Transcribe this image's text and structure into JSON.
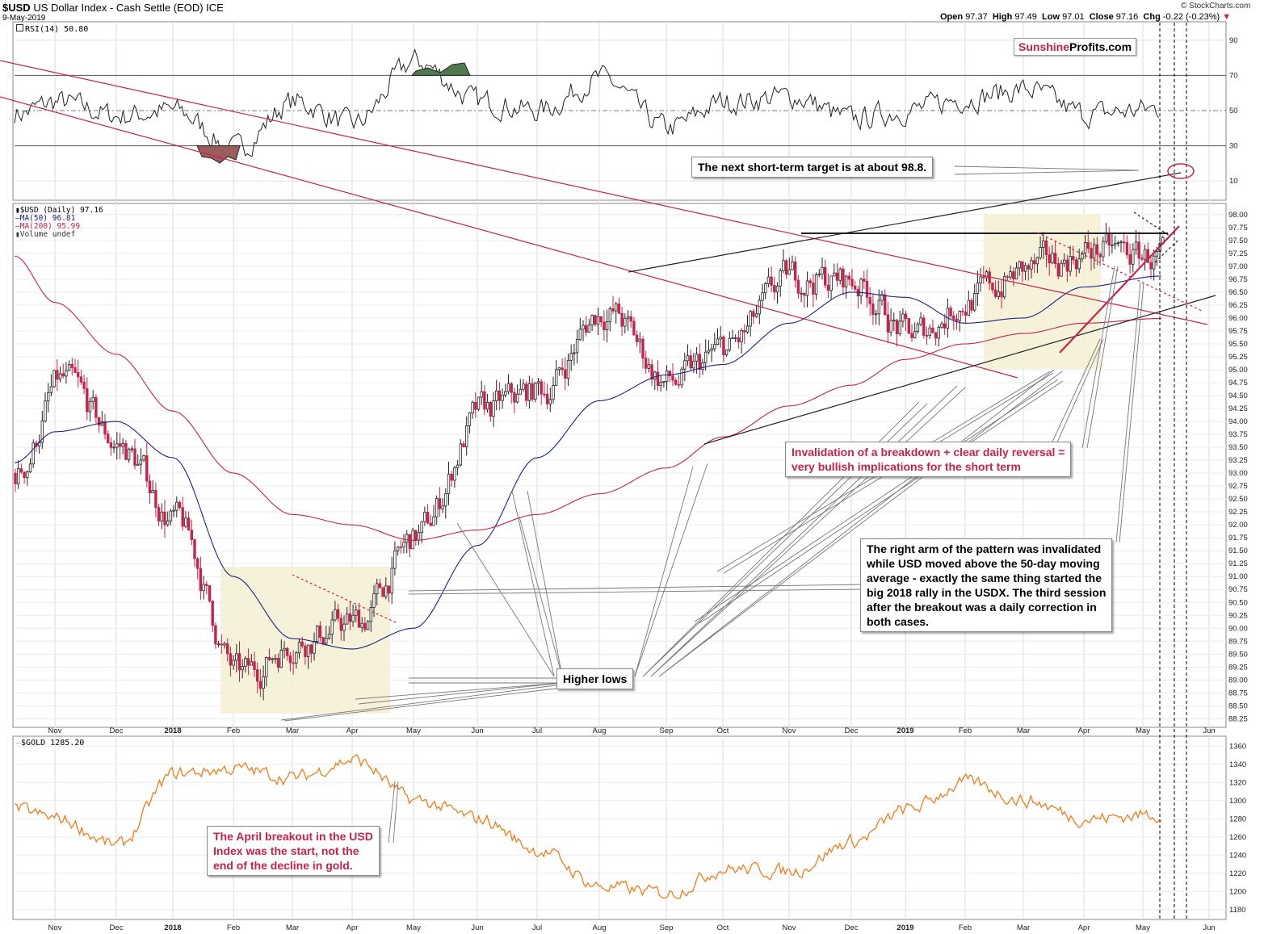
{
  "header": {
    "symbol": "$USD",
    "name": "US Dollar Index - Cash Settle (EOD)",
    "exchange": "ICE",
    "date": "9-May-2019",
    "copyright": "© StockCharts.com",
    "open_label": "Open",
    "open": "97.37",
    "high_label": "High",
    "high": "97.49",
    "low_label": "Low",
    "low": "97.01",
    "close_label": "Close",
    "close": "97.16",
    "chg_label": "Chg",
    "chg": "-0.22 (-0.23%)"
  },
  "logo": {
    "part1": "Sunshine",
    "part2": "Profits.com"
  },
  "rsi_panel": {
    "label": "RSI(14) 50.80",
    "ticks": [
      "90",
      "70",
      "50",
      "30",
      "10"
    ]
  },
  "price_panel": {
    "legend": [
      "$USD (Daily) 97.16",
      "MA(50) 96.81",
      "MA(200) 95.99",
      "Volume undef"
    ],
    "ticks": [
      "98.00",
      "97.75",
      "97.50",
      "97.25",
      "97.00",
      "96.75",
      "96.50",
      "96.25",
      "96.00",
      "95.75",
      "95.50",
      "95.25",
      "95.00",
      "94.75",
      "94.50",
      "94.25",
      "94.00",
      "93.75",
      "93.50",
      "93.25",
      "93.00",
      "92.75",
      "92.50",
      "92.25",
      "92.00",
      "91.75",
      "91.50",
      "91.25",
      "91.00",
      "90.75",
      "90.50",
      "90.25",
      "90.00",
      "89.75",
      "89.50",
      "89.25",
      "89.00",
      "88.75",
      "88.50",
      "88.25"
    ]
  },
  "gold_panel": {
    "label": "$GOLD 1285.20",
    "ticks": [
      "1360",
      "1340",
      "1320",
      "1300",
      "1280",
      "1260",
      "1240",
      "1220",
      "1200",
      "1180"
    ]
  },
  "months": [
    "Nov",
    "Dec",
    "2018",
    "Feb",
    "Mar",
    "Apr",
    "May",
    "Jun",
    "Jul",
    "Aug",
    "Sep",
    "Oct",
    "Nov",
    "Dec",
    "2019",
    "Feb",
    "Mar",
    "Apr",
    "May",
    "Jun"
  ],
  "annotations": {
    "target": "The next short-term target is at about 98.8.",
    "invalidation": [
      "Invalidation of a breakdown + clear daily reversal =",
      "very bullish implications for the short term"
    ],
    "right_arm": [
      "The right arm of the pattern was invalidated",
      "while USD moved above the 50-day moving",
      "average - exactly the same thing started the",
      "big 2018 rally in the USDX. The third session",
      "after the breakout was a daily correction in",
      "both cases."
    ],
    "higher_lows": "Higher lows",
    "april_breakout": [
      "The April breakout in the USD",
      "Index was the start, not the",
      "end of the decline in gold."
    ]
  },
  "colors": {
    "up": "#222222",
    "down": "#c8224b",
    "ma50": "#1a237e",
    "ma200": "#c8224b",
    "gold": "#f07d1a",
    "rsi": "#222222",
    "rsi_over": "#4e7a4e",
    "rsi_under": "#9b5c5c",
    "highlight": "#f5f1d6",
    "annotation_red": "#c8224b"
  },
  "chart_data": [
    {
      "type": "line",
      "title": "RSI(14) 50.80",
      "ylim": [
        0,
        100
      ],
      "reference_lines": [
        70,
        50,
        30
      ],
      "x": [
        "2017-10",
        "2017-11",
        "2017-12",
        "2018-01",
        "2018-02",
        "2018-03",
        "2018-04",
        "2018-05",
        "2018-06",
        "2018-07",
        "2018-08",
        "2018-09",
        "2018-10",
        "2018-11",
        "2018-12",
        "2019-01",
        "2019-02",
        "2019-03",
        "2019-04",
        "2019-05"
      ],
      "values": [
        48,
        55,
        47,
        50,
        28,
        55,
        42,
        78,
        55,
        50,
        68,
        40,
        55,
        58,
        45,
        50,
        57,
        62,
        48,
        51
      ]
    },
    {
      "type": "line",
      "title": "$USD (Daily) 97.16",
      "ylim": [
        88.1,
        98.2
      ],
      "x": [
        "2017-10",
        "2017-11",
        "2017-12",
        "2018-01",
        "2018-02",
        "2018-03",
        "2018-04",
        "2018-05",
        "2018-06",
        "2018-07",
        "2018-08",
        "2018-09",
        "2018-10",
        "2018-11",
        "2018-12",
        "2019-01",
        "2019-02",
        "2019-03",
        "2019-04",
        "2019-05"
      ],
      "series": [
        {
          "name": "$USD (Daily) 97.16",
          "values": [
            93.0,
            94.8,
            93.5,
            92.0,
            89.0,
            89.8,
            90.1,
            91.8,
            94.2,
            94.6,
            96.2,
            94.7,
            95.4,
            96.8,
            96.7,
            95.6,
            96.4,
            96.9,
            97.3,
            97.16
          ]
        },
        {
          "name": "MA(50) 96.81",
          "values": [
            93.2,
            93.8,
            94.0,
            93.3,
            91.0,
            89.8,
            89.6,
            90.0,
            91.6,
            93.3,
            94.4,
            94.9,
            95.1,
            95.9,
            96.5,
            96.4,
            95.9,
            96.0,
            96.6,
            96.81
          ]
        },
        {
          "name": "MA(200) 95.99",
          "values": [
            97.2,
            96.3,
            95.3,
            94.2,
            93.0,
            92.2,
            92.0,
            91.7,
            91.9,
            92.2,
            92.6,
            93.1,
            93.7,
            94.3,
            94.7,
            95.2,
            95.5,
            95.7,
            95.9,
            95.99
          ]
        }
      ]
    },
    {
      "type": "line",
      "title": "$GOLD 1285.20",
      "ylim": [
        1180,
        1370
      ],
      "x": [
        "2017-10",
        "2017-11",
        "2017-12",
        "2018-01",
        "2018-02",
        "2018-03",
        "2018-04",
        "2018-05",
        "2018-06",
        "2018-07",
        "2018-08",
        "2018-09",
        "2018-10",
        "2018-11",
        "2018-12",
        "2019-01",
        "2019-02",
        "2019-03",
        "2019-04",
        "2019-05"
      ],
      "series": [
        {
          "name": "$GOLD 1285.20",
          "values": [
            1290,
            1280,
            1250,
            1330,
            1335,
            1325,
            1345,
            1300,
            1280,
            1245,
            1205,
            1198,
            1225,
            1222,
            1255,
            1290,
            1320,
            1300,
            1280,
            1285.2
          ]
        }
      ]
    }
  ]
}
